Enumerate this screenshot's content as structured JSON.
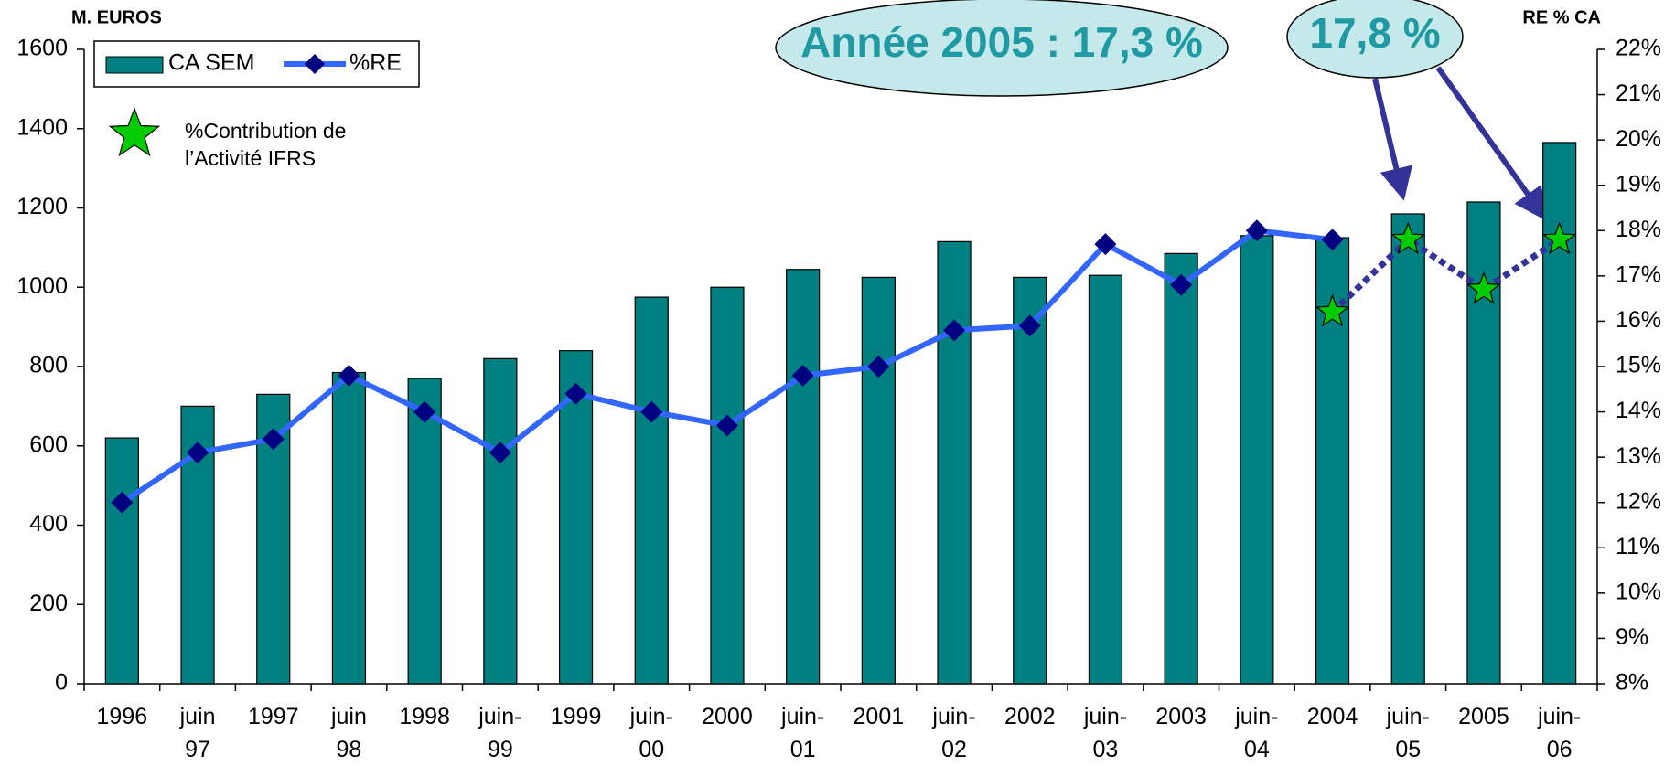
{
  "chart_data": {
    "type": "bar_line",
    "y_label": "M. EUROS",
    "y2_label": "RE % CA",
    "annotations": [
      "Année 2005 : 17,3 %",
      "17,8 %"
    ],
    "categories": [
      "1996",
      "juin 97",
      "1997",
      "juin 98",
      "1998",
      "juin-99",
      "1999",
      "juin-00",
      "2000",
      "juin-01",
      "2001",
      "juin-02",
      "2002",
      "juin-03",
      "2003",
      "juin-04",
      "2004",
      "juin-05",
      "2005",
      "juin-06"
    ],
    "series": [
      {
        "name": "CA SEM",
        "type": "bar",
        "color": "#008080",
        "values": [
          620,
          700,
          730,
          785,
          770,
          820,
          840,
          975,
          1000,
          1045,
          1025,
          1115,
          1025,
          1030,
          1085,
          1130,
          1125,
          1185,
          1215,
          1365
        ]
      },
      {
        "name": "%RE",
        "type": "line",
        "axis": "y2",
        "color": "#3366ff",
        "marker_color": "#000080",
        "values": [
          12.0,
          13.1,
          13.4,
          14.8,
          14.0,
          13.1,
          14.4,
          14.0,
          13.7,
          14.8,
          15.0,
          15.8,
          15.9,
          17.7,
          16.8,
          18.0,
          17.8,
          null,
          null,
          null
        ]
      },
      {
        "name": "%Contribution de l’Activité IFRS",
        "type": "star",
        "axis": "y2",
        "color": "#00cc00",
        "line_color": "#333399",
        "values": [
          null,
          null,
          null,
          null,
          null,
          null,
          null,
          null,
          null,
          null,
          null,
          null,
          null,
          null,
          null,
          null,
          16.2,
          17.8,
          16.7,
          17.8
        ]
      }
    ],
    "ylim": [
      0,
      1600
    ],
    "yticks": [
      0,
      200,
      400,
      600,
      800,
      1000,
      1200,
      1400,
      1600
    ],
    "y2lim": [
      8,
      22
    ],
    "y2ticks": [
      {
        "value": 8,
        "label": "8%"
      },
      {
        "value": 9,
        "label": "9%"
      },
      {
        "value": 10,
        "label": "10%"
      },
      {
        "value": 11,
        "label": "11%"
      },
      {
        "value": 12,
        "label": "12%"
      },
      {
        "value": 13,
        "label": "13%"
      },
      {
        "value": 14,
        "label": "14%"
      },
      {
        "value": 15,
        "label": "15%"
      },
      {
        "value": 16,
        "label": "16%"
      },
      {
        "value": 17,
        "label": "17%"
      },
      {
        "value": 18,
        "label": "18%"
      },
      {
        "value": 19,
        "label": "19%"
      },
      {
        "value": 20,
        "label": "20%"
      },
      {
        "value": 21,
        "label": "21%"
      },
      {
        "value": 22,
        "label": "22%"
      }
    ]
  }
}
